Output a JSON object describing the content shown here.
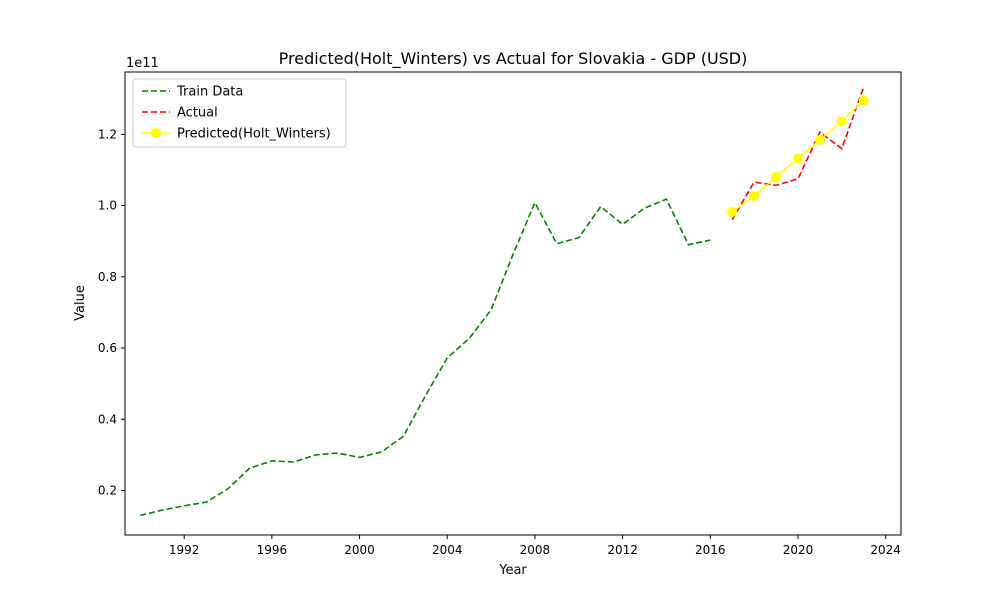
{
  "chart_data": {
    "type": "line",
    "title": "Predicted(Holt_Winters) vs Actual for Slovakia - GDP (USD)",
    "xlabel": "Year",
    "ylabel": "Value",
    "y_scale_label": "1e11",
    "xlim": [
      1989.3,
      2024.7
    ],
    "ylim": [
      0.075,
      1.375
    ],
    "x_ticks": [
      1992,
      1996,
      2000,
      2004,
      2008,
      2012,
      2016,
      2020,
      2024
    ],
    "y_ticks": [
      0.2,
      0.4,
      0.6,
      0.8,
      1.0,
      1.2
    ],
    "y_tick_labels": [
      "0.2",
      "0.4",
      "0.6",
      "0.8",
      "1.0",
      "1.2"
    ],
    "grid": false,
    "legend_position": "upper-left",
    "series": [
      {
        "name": "Train Data",
        "color": "#008000",
        "style": "dashed",
        "marker": "none",
        "x": [
          1990,
          1991,
          1992,
          1993,
          1994,
          1995,
          1996,
          1997,
          1998,
          1999,
          2000,
          2001,
          2002,
          2003,
          2004,
          2005,
          2006,
          2007,
          2008,
          2009,
          2010,
          2011,
          2012,
          2013,
          2014,
          2015,
          2016
        ],
        "y": [
          0.13,
          0.145,
          0.157,
          0.167,
          0.205,
          0.263,
          0.283,
          0.28,
          0.3,
          0.305,
          0.293,
          0.308,
          0.352,
          0.465,
          0.572,
          0.627,
          0.707,
          0.863,
          1.008,
          0.893,
          0.91,
          0.997,
          0.947,
          0.993,
          1.018,
          0.89,
          0.903
        ]
      },
      {
        "name": "Actual",
        "color": "#ff0000",
        "style": "dashed",
        "marker": "none",
        "x": [
          2017,
          2018,
          2019,
          2020,
          2021,
          2022,
          2023
        ],
        "y": [
          0.96,
          1.066,
          1.057,
          1.075,
          1.206,
          1.16,
          1.333
        ]
      },
      {
        "name": "Predicted(Holt_Winters)",
        "color": "#ffff00",
        "style": "solid",
        "marker": "circle",
        "x": [
          2017,
          2018,
          2019,
          2020,
          2021,
          2022,
          2023
        ],
        "y": [
          0.982,
          1.027,
          1.08,
          1.132,
          1.184,
          1.237,
          1.295
        ]
      }
    ]
  }
}
